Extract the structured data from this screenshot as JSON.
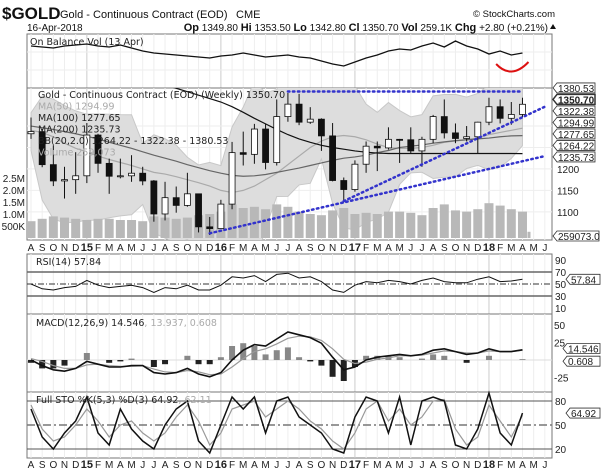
{
  "header": {
    "symbol": "$GOLD",
    "name": "Gold - Continuous Contract (EOD)",
    "exchange": "CME",
    "watermark": "© StockCharts.com",
    "date": "16-Apr-2018",
    "quote": [
      {
        "k": "Op",
        "v": "1349.80"
      },
      {
        "k": "Hi",
        "v": "1353.50"
      },
      {
        "k": "Lo",
        "v": "1342.80"
      },
      {
        "k": "Cl",
        "v": "1350.70"
      },
      {
        "k": "Vol",
        "v": "259.1K"
      },
      {
        "k": "Chg",
        "v": "+2.80 (+0.21%)"
      }
    ],
    "change_icon": "up-triangle-icon"
  },
  "colors": {
    "trendline": "#3333cc",
    "annotation": "#dd1111",
    "bb_fill": "#dddddd",
    "volume": "#b8b8b8",
    "ma50": "#aaaaaa",
    "ma100": "#666666",
    "ma200": "#111111"
  },
  "chart_data": {
    "type": "candlestick",
    "x_axis_labels": [
      "A",
      "S",
      "O",
      "N",
      "D",
      "15",
      "F",
      "M",
      "A",
      "M",
      "J",
      "J",
      "A",
      "S",
      "O",
      "N",
      "D",
      "16",
      "F",
      "M",
      "A",
      "M",
      "J",
      "J",
      "A",
      "S",
      "O",
      "N",
      "D",
      "17",
      "F",
      "M",
      "A",
      "M",
      "J",
      "J",
      "A",
      "S",
      "O",
      "N",
      "D",
      "18",
      "F",
      "M",
      "A",
      "M",
      "J"
    ],
    "periods": [
      "Aug-2014",
      "Sep-2014",
      "Oct-2014",
      "Nov-2014",
      "Dec-2014",
      "Jan-2015",
      "Feb-2015",
      "Mar-2015",
      "Apr-2015",
      "May-2015",
      "Jun-2015",
      "Jul-2015",
      "Aug-2015",
      "Sep-2015",
      "Oct-2015",
      "Nov-2015",
      "Dec-2015",
      "Jan-2016",
      "Feb-2016",
      "Mar-2016",
      "Apr-2016",
      "May-2016",
      "Jun-2016",
      "Jul-2016",
      "Aug-2016",
      "Sep-2016",
      "Oct-2016",
      "Nov-2016",
      "Dec-2016",
      "Jan-2017",
      "Feb-2017",
      "Mar-2017",
      "Apr-2017",
      "May-2017",
      "Jun-2017",
      "Jul-2017",
      "Aug-2017",
      "Sep-2017",
      "Oct-2017",
      "Nov-2017",
      "Dec-2017",
      "Jan-2018",
      "Feb-2018",
      "Mar-2018",
      "Apr-2018"
    ],
    "obv": {
      "label": "On Balance Vol (13 Apr)",
      "values": [
        80,
        78,
        76,
        80,
        82,
        84,
        80,
        78,
        82,
        76,
        70,
        66,
        64,
        62,
        60,
        58,
        56,
        60,
        62,
        66,
        62,
        58,
        60,
        62,
        58,
        56,
        50,
        44,
        40,
        48,
        56,
        62,
        70,
        74,
        72,
        80,
        86,
        78,
        90,
        80,
        74,
        64,
        70,
        62,
        66
      ]
    },
    "price": {
      "label": "Gold - Continuous Contract (EOD) (Weekly) 1350.70",
      "ohlc": [
        [
          1282,
          1320,
          1270,
          1287
        ],
        [
          1287,
          1293,
          1204,
          1210
        ],
        [
          1210,
          1255,
          1160,
          1172
        ],
        [
          1172,
          1205,
          1131,
          1175
        ],
        [
          1175,
          1239,
          1142,
          1184
        ],
        [
          1184,
          1307,
          1167,
          1279
        ],
        [
          1279,
          1282,
          1191,
          1213
        ],
        [
          1213,
          1224,
          1142,
          1183
        ],
        [
          1183,
          1224,
          1178,
          1184
        ],
        [
          1184,
          1232,
          1170,
          1190
        ],
        [
          1190,
          1205,
          1162,
          1172
        ],
        [
          1172,
          1174,
          1077,
          1095
        ],
        [
          1095,
          1170,
          1080,
          1133
        ],
        [
          1133,
          1159,
          1098,
          1115
        ],
        [
          1115,
          1191,
          1112,
          1142
        ],
        [
          1142,
          1142,
          1052,
          1065
        ],
        [
          1065,
          1088,
          1046,
          1061
        ],
        [
          1061,
          1128,
          1061,
          1118
        ],
        [
          1118,
          1263,
          1106,
          1238
        ],
        [
          1238,
          1287,
          1208,
          1234
        ],
        [
          1234,
          1305,
          1212,
          1293
        ],
        [
          1293,
          1306,
          1199,
          1215
        ],
        [
          1215,
          1362,
          1208,
          1322
        ],
        [
          1322,
          1377,
          1310,
          1351
        ],
        [
          1351,
          1375,
          1302,
          1309
        ],
        [
          1309,
          1344,
          1305,
          1316
        ],
        [
          1316,
          1318,
          1242,
          1277
        ],
        [
          1277,
          1307,
          1171,
          1173
        ],
        [
          1173,
          1180,
          1122,
          1152
        ],
        [
          1152,
          1220,
          1147,
          1211
        ],
        [
          1211,
          1264,
          1191,
          1253
        ],
        [
          1253,
          1264,
          1195,
          1249
        ],
        [
          1249,
          1297,
          1245,
          1269
        ],
        [
          1269,
          1270,
          1214,
          1268
        ],
        [
          1268,
          1297,
          1236,
          1242
        ],
        [
          1242,
          1275,
          1205,
          1269
        ],
        [
          1269,
          1326,
          1260,
          1322
        ],
        [
          1322,
          1362,
          1271,
          1284
        ],
        [
          1284,
          1306,
          1260,
          1271
        ],
        [
          1271,
          1300,
          1264,
          1275
        ],
        [
          1275,
          1310,
          1236,
          1309
        ],
        [
          1309,
          1366,
          1302,
          1345
        ],
        [
          1345,
          1362,
          1306,
          1318
        ],
        [
          1318,
          1356,
          1303,
          1327
        ],
        [
          1327,
          1366,
          1321,
          1350.7
        ]
      ],
      "ma50": {
        "label": "MA(50) 1294.99",
        "values": [
          1290,
          1285,
          1275,
          1260,
          1248,
          1240,
          1230,
          1222,
          1215,
          1208,
          1200,
          1192,
          1188,
          1182,
          1175,
          1168,
          1160,
          1150,
          1145,
          1150,
          1160,
          1175,
          1190,
          1210,
          1230,
          1250,
          1265,
          1275,
          1278,
          1275,
          1268,
          1258,
          1250,
          1248,
          1248,
          1250,
          1255,
          1262,
          1265,
          1268,
          1272,
          1280,
          1285,
          1290,
          1294.99
        ]
      },
      "ma100": {
        "label": "MA(100) 1277.65",
        "values": [
          1300,
          1296,
          1292,
          1287,
          1282,
          1276,
          1270,
          1262,
          1255,
          1248,
          1240,
          1232,
          1225,
          1218,
          1210,
          1203,
          1196,
          1190,
          1185,
          1183,
          1184,
          1187,
          1192,
          1197,
          1202,
          1208,
          1214,
          1220,
          1225,
          1228,
          1232,
          1238,
          1243,
          1250,
          1253,
          1256,
          1260,
          1263,
          1266,
          1268,
          1270,
          1272,
          1275,
          1277,
          1277.65
        ]
      },
      "ma200": {
        "label": "MA(200) 1235.73",
        "values": [
          1480,
          1475,
          1470,
          1462,
          1455,
          1448,
          1440,
          1432,
          1425,
          1418,
          1410,
          1402,
          1395,
          1388,
          1380,
          1372,
          1364,
          1356,
          1345,
          1332,
          1318,
          1305,
          1292,
          1280,
          1270,
          1262,
          1255,
          1250,
          1246,
          1242,
          1239,
          1237,
          1236,
          1236,
          1236,
          1236,
          1236,
          1236,
          1236,
          1236,
          1236,
          1236,
          1236,
          1236,
          1235.73
        ]
      },
      "bb_label": "BB(20,2.0) 1264.22 - 1322.38 - 1380.53",
      "volume": {
        "label": "Volume 259,073",
        "values_k": [
          700,
          800,
          900,
          850,
          800,
          750,
          800,
          800,
          750,
          750,
          700,
          900,
          850,
          800,
          850,
          950,
          1000,
          1100,
          1400,
          1250,
          1300,
          1200,
          1400,
          1300,
          1100,
          1000,
          950,
          1150,
          1250,
          1000,
          1050,
          1000,
          1100,
          1100,
          1050,
          950,
          1250,
          1400,
          1150,
          1100,
          1200,
          1450,
          1350,
          1200,
          1100
        ],
        "axis_labels": [
          "2.5M",
          "2.0M",
          "1.5M",
          "1.0M",
          "500K"
        ]
      },
      "y_ticks": [
        1200,
        1150,
        1100
      ],
      "right_labels": [
        {
          "v": 1380.53,
          "t": "1380.53"
        },
        {
          "v": 1350.7,
          "t": "1350.70",
          "bold": true
        },
        {
          "v": 1322.38,
          "t": "1322.38"
        },
        {
          "v": 1294.99,
          "t": "1294.99"
        },
        {
          "v": 1277.65,
          "t": "1277.65"
        },
        {
          "v": 1264.22,
          "t": "1264.22"
        },
        {
          "v": 1235.73,
          "t": "1235.73"
        }
      ],
      "volume_right_label": "259073.0",
      "trendlines": [
        {
          "from": [
            "Jul-2016",
            1380.53
          ],
          "to": [
            "Apr-2018",
            1380.53
          ]
        },
        {
          "from": [
            "Dec-2015",
            1050
          ],
          "to": [
            "Jun-2018",
            1230
          ]
        },
        {
          "from": [
            "Dec-2016",
            1125
          ],
          "to": [
            "Jun-2018",
            1345
          ]
        }
      ]
    },
    "rsi": {
      "label": "RSI(14) 57.84",
      "current": "57.84",
      "ticks": [
        90,
        70,
        50,
        30,
        10
      ],
      "values": [
        50,
        42,
        40,
        44,
        46,
        56,
        48,
        44,
        46,
        48,
        44,
        36,
        44,
        42,
        48,
        40,
        40,
        48,
        62,
        60,
        64,
        54,
        66,
        68,
        60,
        62,
        54,
        40,
        36,
        48,
        54,
        52,
        56,
        54,
        50,
        56,
        60,
        54,
        52,
        52,
        58,
        62,
        54,
        55,
        57.84
      ]
    },
    "macd": {
      "label": "MACD(12,26,9) 14.546",
      "label_signal": ", 13.937, 0.608",
      "current": "14.546",
      "hist_current": "0.608",
      "ticks": [
        50,
        25,
        -25
      ],
      "macd": [
        0,
        -8,
        -14,
        -16,
        -12,
        -2,
        -6,
        -10,
        -10,
        -8,
        -8,
        -18,
        -20,
        -18,
        -12,
        -20,
        -24,
        -18,
        0,
        14,
        22,
        20,
        30,
        40,
        36,
        32,
        24,
        4,
        -14,
        -10,
        0,
        4,
        6,
        8,
        6,
        8,
        14,
        16,
        12,
        8,
        10,
        16,
        12,
        12,
        14.546
      ],
      "signal": [
        2,
        -2,
        -8,
        -12,
        -12,
        -7,
        -6,
        -8,
        -9,
        -9,
        -8,
        -13,
        -17,
        -18,
        -15,
        -17,
        -21,
        -20,
        -10,
        2,
        12,
        16,
        23,
        31,
        34,
        33,
        28,
        16,
        1,
        -5,
        -3,
        1,
        3,
        6,
        6,
        7,
        10,
        13,
        12,
        10,
        10,
        13,
        12,
        12,
        13.937
      ]
    },
    "sto": {
      "label": "Full STO %K(5,3) %D(3) 64.92",
      "label_d": ", 62.11",
      "current": "64.92",
      "ticks": [
        80,
        50,
        20
      ],
      "k": [
        70,
        35,
        20,
        40,
        55,
        85,
        40,
        25,
        70,
        45,
        30,
        20,
        50,
        70,
        80,
        30,
        15,
        50,
        85,
        70,
        85,
        40,
        80,
        85,
        60,
        50,
        40,
        20,
        15,
        60,
        85,
        80,
        40,
        85,
        25,
        80,
        85,
        80,
        25,
        20,
        45,
        90,
        40,
        25,
        64.92
      ],
      "d": [
        75,
        45,
        30,
        35,
        50,
        70,
        55,
        35,
        50,
        55,
        40,
        30,
        40,
        60,
        75,
        55,
        25,
        40,
        70,
        75,
        80,
        60,
        70,
        80,
        70,
        55,
        45,
        30,
        20,
        40,
        70,
        80,
        55,
        70,
        50,
        60,
        80,
        82,
        45,
        25,
        35,
        75,
        55,
        35,
        62.11
      ]
    }
  }
}
